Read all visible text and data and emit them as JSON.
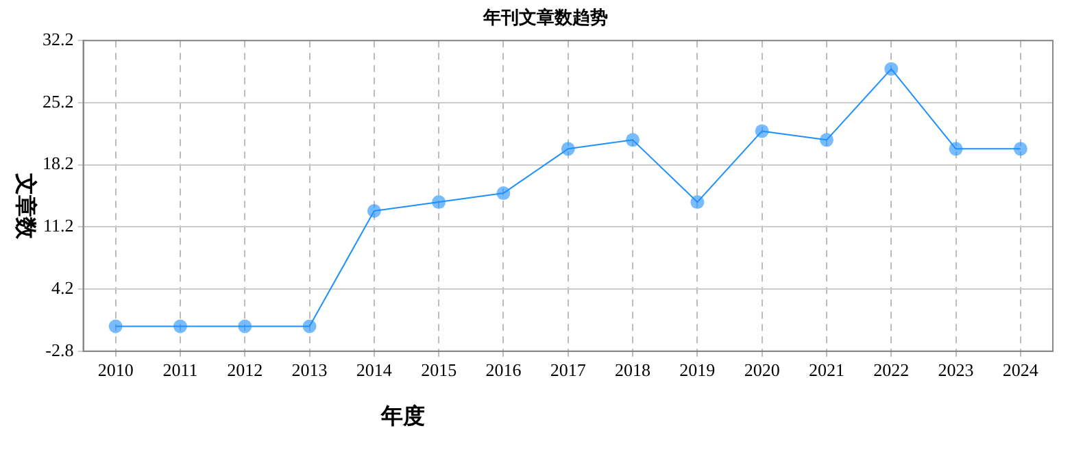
{
  "chart_data": {
    "type": "line",
    "title": "年刊文章数趋势",
    "xlabel": "年度",
    "ylabel": "文章数",
    "categories": [
      "2010",
      "2011",
      "2012",
      "2013",
      "2014",
      "2015",
      "2016",
      "2017",
      "2018",
      "2019",
      "2020",
      "2021",
      "2022",
      "2023",
      "2024"
    ],
    "series": [
      {
        "color": "#1e90ff",
        "values": [
          0,
          0,
          0,
          0,
          13,
          14,
          15,
          20,
          21,
          14,
          22,
          21,
          29,
          20,
          20
        ]
      }
    ],
    "ylim": [
      -2.8,
      32.2
    ],
    "yticks": [
      -2.8,
      4.2,
      11.2,
      18.2,
      25.2,
      32.2
    ],
    "grid": true,
    "marker": "circle",
    "line_style": "solid"
  }
}
